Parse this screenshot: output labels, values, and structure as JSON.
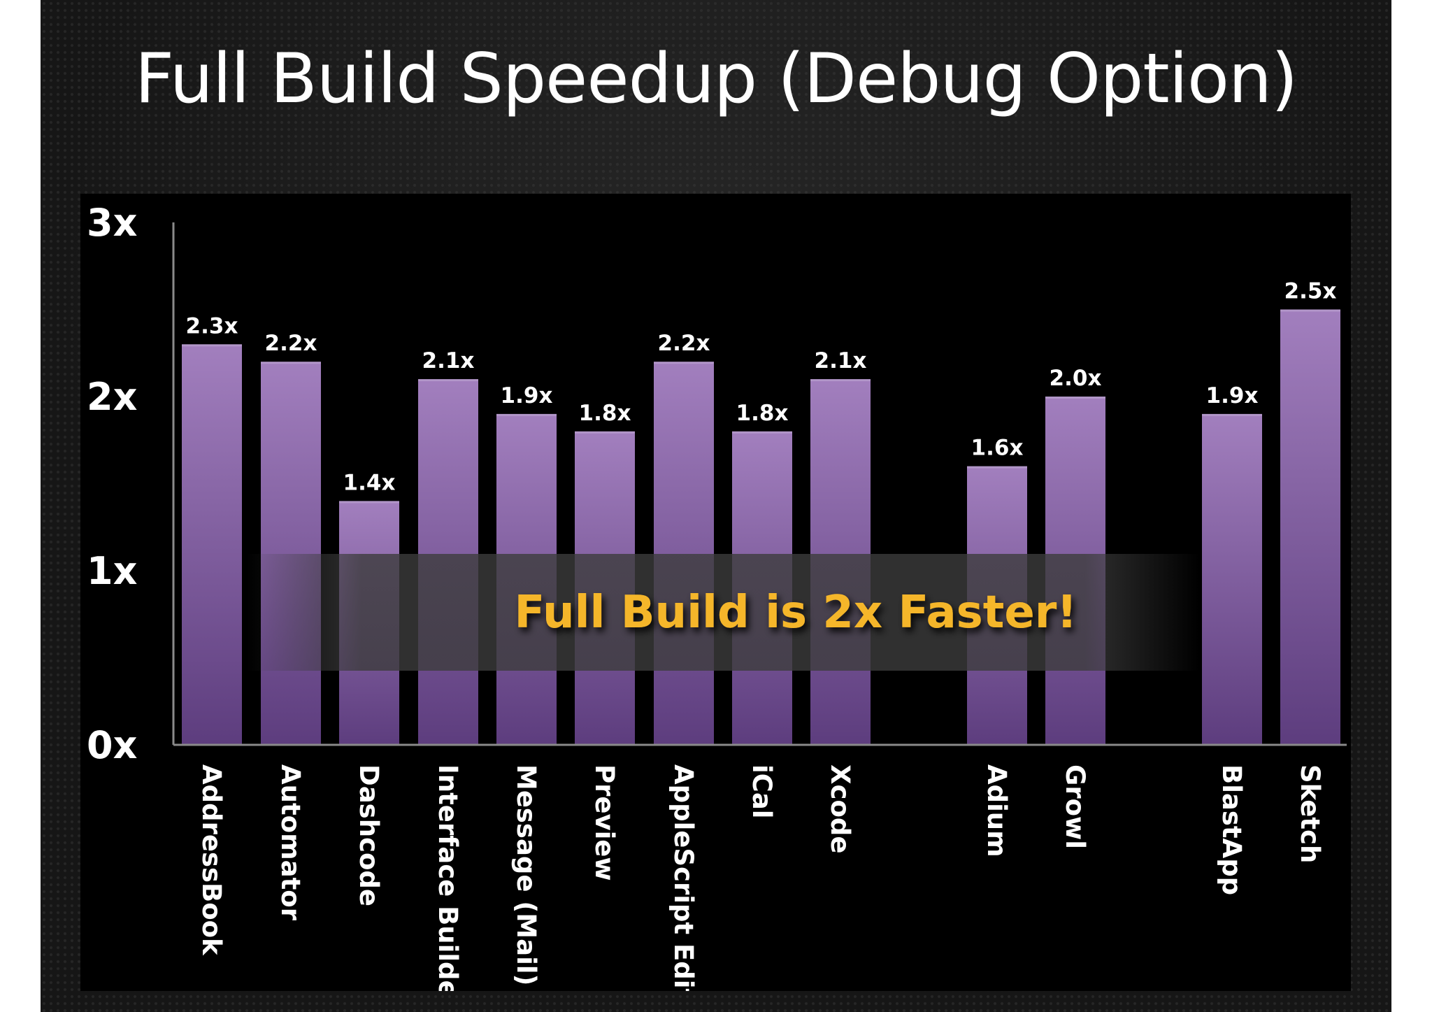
{
  "slide": {
    "title": "Full Build Speedup (Debug Option)"
  },
  "colors": {
    "bar_top": "#a27fbe",
    "bar_bottom": "#5d3d7e",
    "callout_text": "#f5b62a",
    "panel_background": "#000000",
    "slide_background": "#161616"
  },
  "chart_data": {
    "type": "bar",
    "title": "Full Build Speedup (Debug Option)",
    "xlabel": "",
    "ylabel": "",
    "ylim": [
      0,
      3
    ],
    "yticks": [
      "0x",
      "1x",
      "2x",
      "3x"
    ],
    "categories": [
      "AddressBook",
      "Automator",
      "Dashcode",
      "Interface Builder",
      "Message (Mail)",
      "Preview",
      "AppleScript Edit",
      "iCal",
      "Xcode",
      "Adium",
      "Growl",
      "BlastApp",
      "Sketch"
    ],
    "values": [
      2.3,
      2.2,
      1.4,
      2.1,
      1.9,
      1.8,
      2.2,
      1.8,
      2.1,
      1.6,
      2.0,
      1.9,
      2.5
    ],
    "value_labels": [
      "2.3x",
      "2.2x",
      "1.4x",
      "2.1x",
      "1.9x",
      "1.8x",
      "2.2x",
      "1.8x",
      "2.1x",
      "1.6x",
      "2.0x",
      "1.9x",
      "2.5x"
    ],
    "grid": false,
    "legend": "none",
    "annotation": "Full Build is 2x Faster!"
  }
}
